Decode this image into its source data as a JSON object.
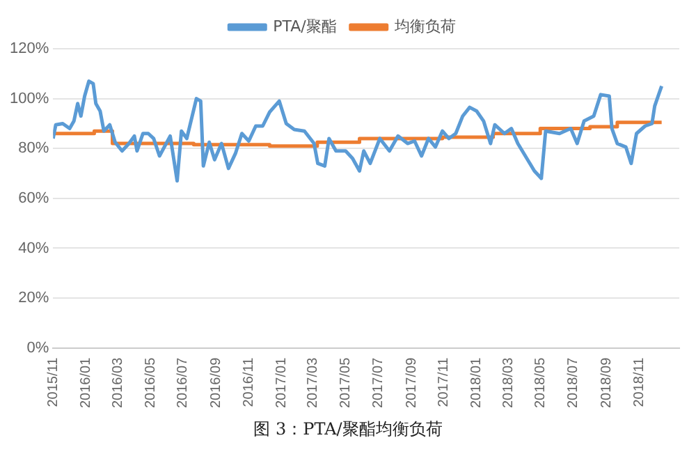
{
  "chart_data": {
    "type": "line",
    "annotations": [
      "图 3：PTA/聚酯均衡负荷"
    ],
    "xlim": [
      "2015-11-01",
      "2019-01-15"
    ],
    "xticks": [
      {
        "value": "2015-11",
        "label": "2015/11"
      },
      {
        "value": "2016-01",
        "label": "2016/01"
      },
      {
        "value": "2016-03",
        "label": "2016/03"
      },
      {
        "value": "2016-05",
        "label": "2016/05"
      },
      {
        "value": "2016-07",
        "label": "2016/07"
      },
      {
        "value": "2016-09",
        "label": "2016/09"
      },
      {
        "value": "2016-11",
        "label": "2016/11"
      },
      {
        "value": "2017-01",
        "label": "2017/01"
      },
      {
        "value": "2017-03",
        "label": "2017/03"
      },
      {
        "value": "2017-05",
        "label": "2017/05"
      },
      {
        "value": "2017-07",
        "label": "2017/07"
      },
      {
        "value": "2017-09",
        "label": "2017/09"
      },
      {
        "value": "2017-11",
        "label": "2017/11"
      },
      {
        "value": "2018-01",
        "label": "2018/01"
      },
      {
        "value": "2018-03",
        "label": "2018/03"
      },
      {
        "value": "2018-05",
        "label": "2018/05"
      },
      {
        "value": "2018-07",
        "label": "2018/07"
      },
      {
        "value": "2018-09",
        "label": "2018/09"
      },
      {
        "value": "2018-11",
        "label": "2018/11"
      }
    ],
    "ylim": [
      0,
      120
    ],
    "yticks": [
      {
        "value": 0,
        "label": "0%"
      },
      {
        "value": 20,
        "label": "20%"
      },
      {
        "value": 40,
        "label": "40%"
      },
      {
        "value": 60,
        "label": "60%"
      },
      {
        "value": 80,
        "label": "80%"
      },
      {
        "value": 100,
        "label": "100%"
      },
      {
        "value": 120,
        "label": "120%"
      }
    ],
    "grid": "y",
    "legend": "top",
    "marker": "none",
    "series": [
      {
        "name": "PTA/聚酯",
        "color": "#5b9bd5",
        "x": [
          "2015-11-01",
          "2015-11-06",
          "2015-11-19",
          "2015-12-02",
          "2015-12-10",
          "2015-12-17",
          "2015-12-23",
          "2015-12-30",
          "2016-01-07",
          "2016-01-15",
          "2016-01-20",
          "2016-01-28",
          "2016-02-04",
          "2016-02-15",
          "2016-02-25",
          "2016-03-09",
          "2016-03-22",
          "2016-04-01",
          "2016-04-06",
          "2016-04-17",
          "2016-04-27",
          "2016-05-07",
          "2016-05-18",
          "2016-06-07",
          "2016-06-20",
          "2016-06-28",
          "2016-07-08",
          "2016-07-26",
          "2016-08-03",
          "2016-08-08",
          "2016-08-19",
          "2016-08-29",
          "2016-09-11",
          "2016-09-24",
          "2016-10-07",
          "2016-10-19",
          "2016-11-01",
          "2016-11-14",
          "2016-11-27",
          "2016-12-10",
          "2016-12-28",
          "2017-01-10",
          "2017-01-25",
          "2017-02-13",
          "2017-03-03",
          "2017-03-10",
          "2017-03-23",
          "2017-03-31",
          "2017-04-13",
          "2017-05-01",
          "2017-05-14",
          "2017-05-27",
          "2017-06-04",
          "2017-06-16",
          "2017-07-04",
          "2017-07-22",
          "2017-08-07",
          "2017-08-25",
          "2017-09-07",
          "2017-09-20",
          "2017-10-03",
          "2017-10-16",
          "2017-10-29",
          "2017-11-10",
          "2017-11-23",
          "2017-12-06",
          "2017-12-19",
          "2018-01-01",
          "2018-01-14",
          "2018-01-27",
          "2018-02-04",
          "2018-02-22",
          "2018-03-07",
          "2018-03-19",
          "2018-04-19",
          "2018-05-02",
          "2018-05-10",
          "2018-06-05",
          "2018-06-26",
          "2018-07-08",
          "2018-07-21",
          "2018-08-08",
          "2018-08-21",
          "2018-09-06",
          "2018-09-11",
          "2018-09-21",
          "2018-10-07",
          "2018-10-17",
          "2018-10-27",
          "2018-11-12",
          "2018-11-25",
          "2018-11-30",
          "2018-12-08",
          "2018-12-13"
        ],
        "values": [
          84,
          89.5,
          90,
          88,
          91,
          98,
          93,
          101,
          107,
          106,
          98,
          95,
          87,
          89.5,
          82.5,
          79,
          82,
          85,
          79,
          86,
          86,
          84,
          77,
          85,
          67,
          87,
          84,
          100,
          99,
          73,
          82.5,
          75.5,
          82,
          72,
          78,
          86,
          83,
          89,
          89,
          94.6,
          99,
          90,
          87.6,
          87,
          82,
          74,
          73,
          84,
          79,
          79,
          76,
          71,
          79,
          74,
          84,
          79,
          85,
          82,
          83,
          77,
          84,
          80.6,
          87,
          84,
          86,
          93,
          96.5,
          95,
          91,
          82,
          89.5,
          86,
          88,
          82,
          71,
          68,
          87,
          86,
          88,
          82,
          91,
          93,
          101.6,
          101,
          88,
          82,
          80.6,
          74,
          86,
          89,
          90,
          97,
          102,
          105
        ]
      },
      {
        "name": "均衡负荷",
        "color": "#ed7d31",
        "type": "step",
        "x": [
          "2015-11-01",
          "2016-01-17",
          "2016-02-20",
          "2016-07-21",
          "2016-12-10",
          "2017-03-09",
          "2017-05-27",
          "2017-10-29",
          "2018-02-01",
          "2018-04-30",
          "2018-08-01",
          "2018-09-21",
          "2018-12-13"
        ],
        "values": [
          86,
          87,
          82,
          81.5,
          81,
          82.5,
          84,
          84.5,
          86,
          88,
          88.7,
          90.5,
          90.5
        ]
      }
    ]
  }
}
